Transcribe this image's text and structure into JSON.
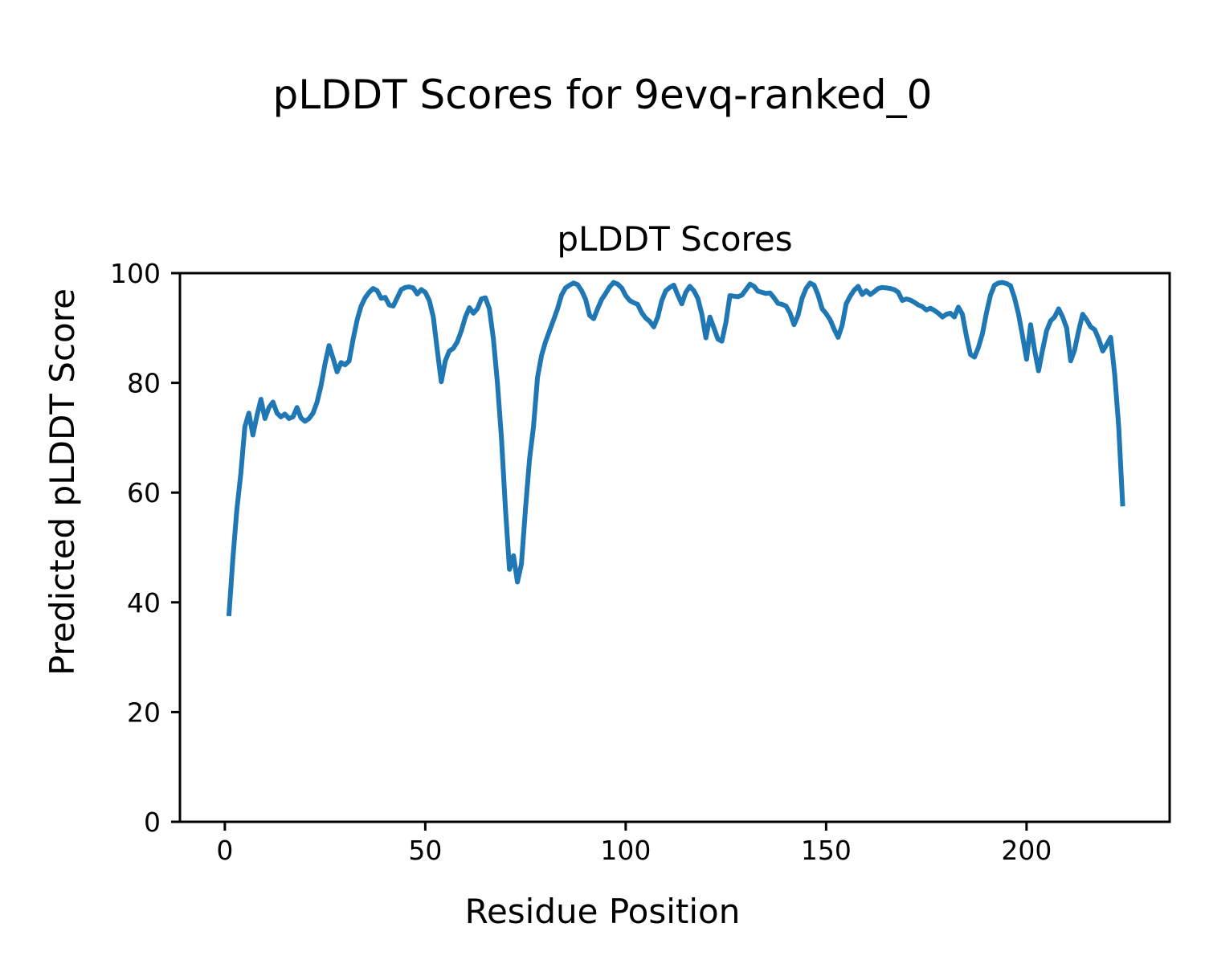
{
  "figure": {
    "suptitle": "pLDDT Scores for 9evq-ranked_0",
    "background_color": "#ffffff",
    "text_color": "#000000"
  },
  "chart_data": {
    "type": "line",
    "title": "pLDDT Scores",
    "xlabel": "Residue Position",
    "ylabel": "Predicted pLDDT Score",
    "x_ticks": [
      0,
      50,
      100,
      150,
      200
    ],
    "y_ticks": [
      0,
      20,
      40,
      60,
      80,
      100
    ],
    "xlim": [
      -11.2,
      235.7
    ],
    "ylim": [
      0,
      100
    ],
    "grid": false,
    "legend_position": "none",
    "line_color": "#1f77b4",
    "axis_color": "#000000",
    "series": [
      {
        "name": "pLDDT",
        "x_start": 1,
        "y": [
          37.5,
          48.0,
          57.0,
          63.5,
          72.0,
          74.5,
          70.5,
          74.0,
          77.0,
          73.5,
          75.5,
          76.5,
          74.5,
          73.8,
          74.3,
          73.5,
          73.8,
          75.5,
          73.6,
          73.0,
          73.5,
          74.5,
          76.5,
          79.5,
          83.5,
          86.8,
          84.5,
          82.0,
          83.7,
          83.3,
          84.0,
          88.0,
          91.5,
          94.0,
          95.5,
          96.5,
          97.2,
          96.8,
          95.4,
          95.6,
          94.2,
          94.0,
          95.5,
          97.0,
          97.4,
          97.5,
          97.3,
          96.2,
          97.0,
          96.5,
          95.0,
          92.0,
          86.0,
          80.2,
          84.0,
          85.8,
          86.3,
          87.5,
          89.5,
          92.0,
          93.7,
          92.7,
          93.5,
          95.3,
          95.5,
          93.5,
          88.0,
          80.0,
          70.0,
          57.0,
          46.0,
          48.5,
          43.7,
          47.0,
          57.0,
          66.0,
          72.0,
          81.0,
          85.0,
          87.5,
          89.5,
          91.5,
          93.5,
          96.0,
          97.3,
          97.8,
          98.2,
          97.9,
          96.8,
          95.2,
          92.3,
          91.7,
          93.5,
          95.2,
          96.3,
          97.5,
          98.3,
          98.0,
          97.3,
          95.9,
          95.0,
          94.6,
          94.3,
          92.8,
          91.8,
          91.2,
          90.2,
          92.0,
          95.0,
          96.8,
          97.4,
          97.8,
          96.0,
          94.4,
          96.5,
          97.6,
          96.8,
          95.4,
          92.5,
          88.2,
          92.0,
          90.0,
          88.0,
          87.6,
          91.0,
          95.9,
          95.8,
          95.7,
          96.0,
          97.0,
          98.0,
          97.6,
          96.7,
          96.5,
          96.3,
          96.4,
          95.5,
          94.5,
          94.3,
          94.0,
          92.7,
          90.6,
          92.3,
          95.4,
          97.2,
          98.2,
          97.8,
          96.0,
          93.5,
          92.6,
          91.5,
          89.8,
          88.3,
          90.5,
          94.4,
          95.8,
          96.9,
          97.6,
          96.1,
          96.8,
          96.1,
          96.6,
          97.2,
          97.4,
          97.3,
          97.2,
          97.0,
          96.5,
          95.0,
          95.3,
          95.1,
          94.7,
          94.2,
          93.9,
          93.3,
          93.6,
          93.2,
          92.7,
          92.0,
          92.5,
          92.7,
          92.0,
          93.8,
          92.5,
          88.5,
          85.2,
          84.7,
          86.5,
          89.0,
          92.8,
          96.0,
          97.8,
          98.2,
          98.3,
          98.1,
          97.7,
          95.5,
          92.5,
          88.5,
          84.3,
          90.6,
          86.0,
          82.2,
          86.0,
          89.5,
          91.3,
          92.0,
          93.5,
          92.0,
          90.0,
          84.0,
          86.0,
          89.5,
          92.5,
          91.5,
          90.2,
          89.7,
          88.0,
          85.8,
          87.0,
          88.3,
          81.5,
          72.0,
          57.5
        ]
      }
    ]
  }
}
